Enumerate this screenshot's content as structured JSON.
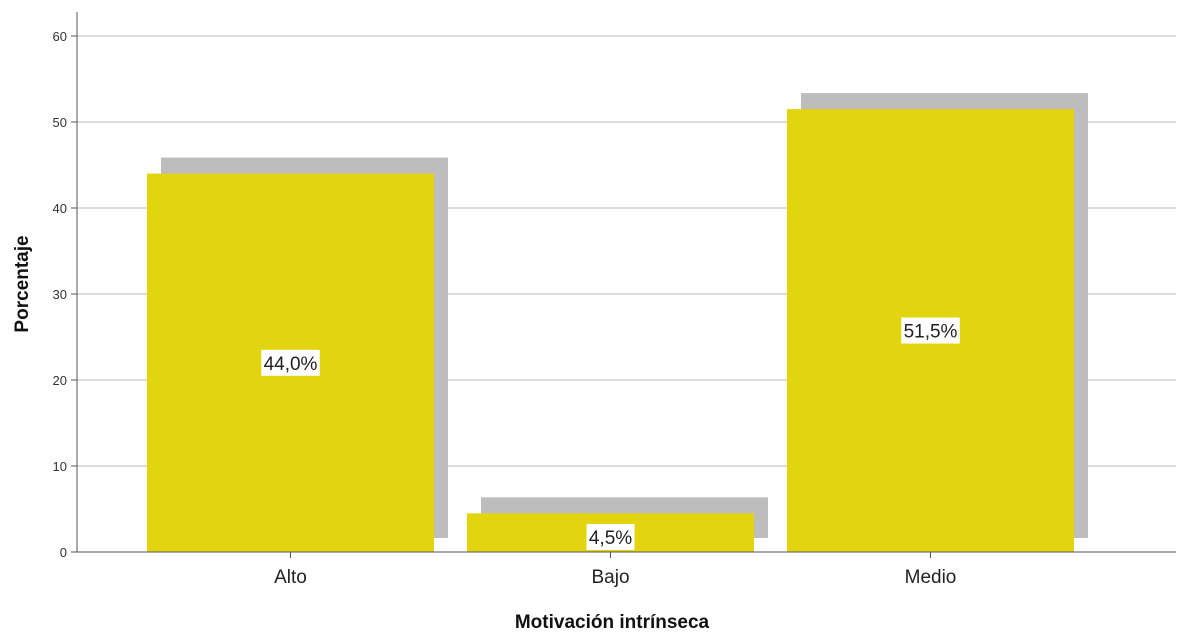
{
  "chart_data": {
    "type": "bar",
    "categories": [
      "Alto",
      "Bajo",
      "Medio"
    ],
    "values": [
      44.0,
      4.5,
      51.5
    ],
    "data_labels": [
      "44,0%",
      "4,5%",
      "51,5%"
    ],
    "xlabel": "Motivación intrínseca",
    "ylabel": "Porcentaje",
    "ylim": [
      0,
      60
    ],
    "yticks": [
      0,
      10,
      20,
      30,
      40,
      50,
      60
    ],
    "grid": true,
    "legend": "none",
    "bar_color": "#e2d50f",
    "shadow_color": "#bdbdbd",
    "grid_color": "#c8c8c8",
    "axis_color": "#555555"
  }
}
